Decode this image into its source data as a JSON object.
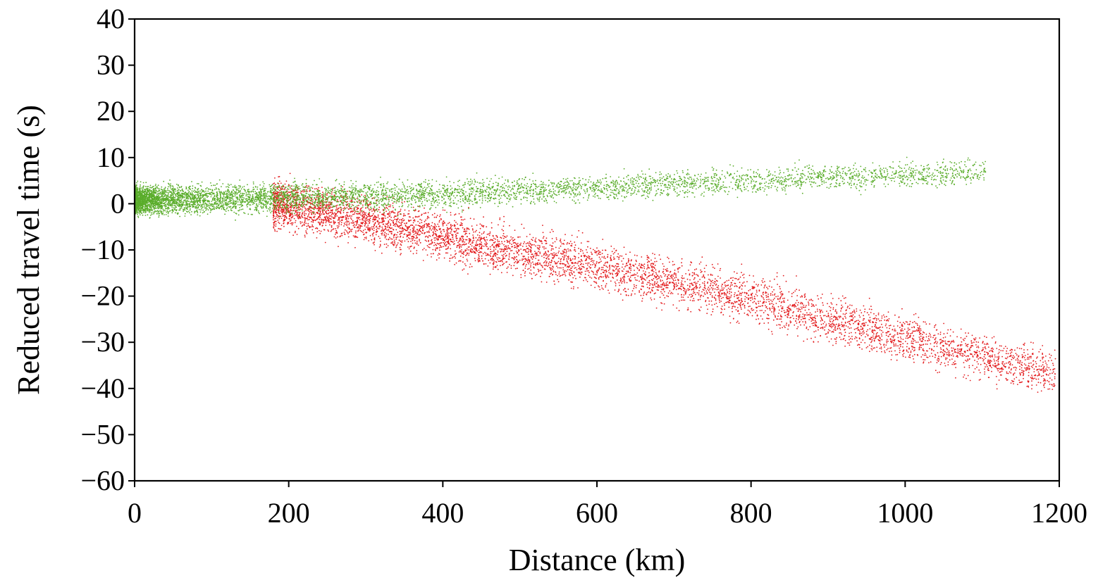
{
  "chart_data": {
    "type": "scatter",
    "title": "",
    "xlabel": "Distance (km)",
    "ylabel": "Reduced travel time (s)",
    "xlim": [
      0,
      1200
    ],
    "ylim": [
      -60,
      40
    ],
    "x_ticks": [
      "0",
      "200",
      "400",
      "600",
      "800",
      "1000",
      "1200"
    ],
    "y_ticks": [
      "40",
      "30",
      "20",
      "10",
      "0",
      "−10",
      "−20",
      "−30",
      "−40",
      "−50",
      "−60"
    ],
    "grid": false,
    "legend": "none",
    "series": [
      {
        "color": "#e31a1c",
        "trend": [
          [
            180,
            0
          ],
          [
            300,
            -3.5
          ],
          [
            400,
            -7
          ],
          [
            500,
            -10.5
          ],
          [
            600,
            -13.5
          ],
          [
            700,
            -17
          ],
          [
            800,
            -20.5
          ],
          [
            900,
            -25
          ],
          [
            1000,
            -29
          ],
          [
            1100,
            -33
          ],
          [
            1195,
            -37
          ]
        ],
        "x_range": [
          180,
          1195
        ],
        "spread": 2.5
      },
      {
        "color": "#5aad2b",
        "trend": [
          [
            0,
            0.8
          ],
          [
            200,
            1.3
          ],
          [
            300,
            1.6
          ],
          [
            400,
            2.2
          ],
          [
            500,
            2.8
          ],
          [
            600,
            3.5
          ],
          [
            700,
            4.2
          ],
          [
            800,
            5
          ],
          [
            900,
            5.8
          ],
          [
            1000,
            6.2
          ],
          [
            1100,
            7
          ]
        ],
        "x_range": [
          0,
          1105
        ],
        "spread": 1.5
      }
    ]
  }
}
